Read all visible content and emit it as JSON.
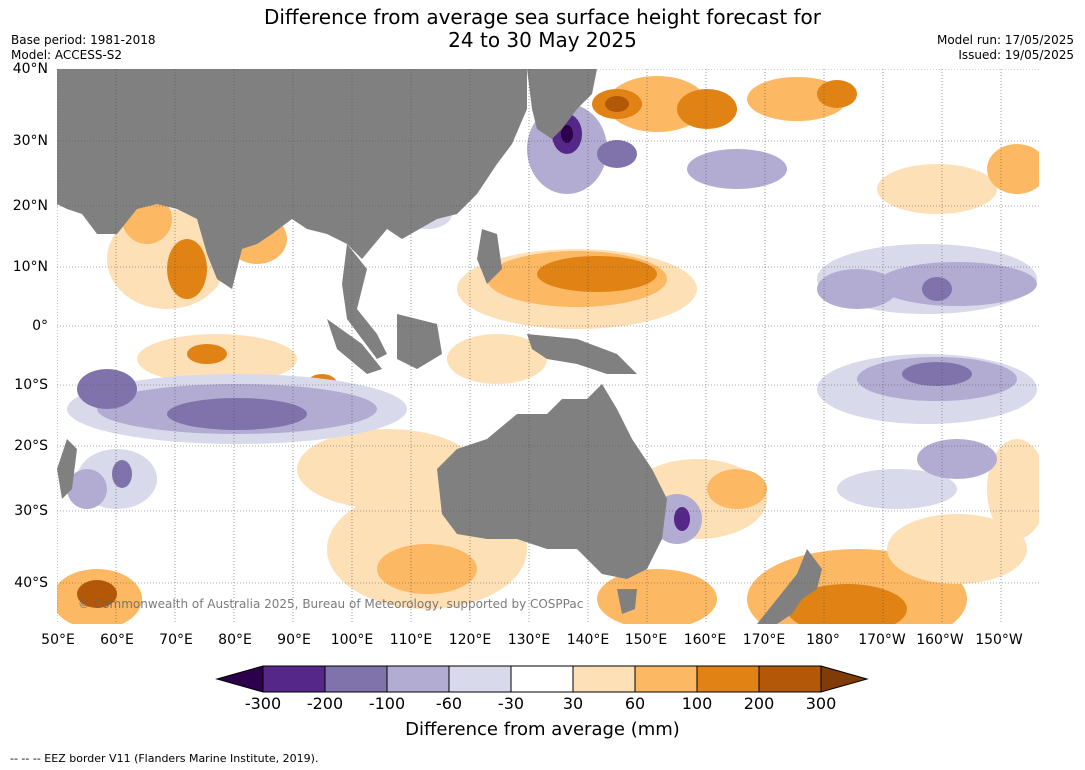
{
  "title_line1": "Difference from average sea surface height forecast for",
  "title_line2": "24 to 30 May 2025",
  "base_period": "Base period: 1981-2018",
  "model": "Model: ACCESS-S2",
  "model_run": "Model run: 17/05/2025",
  "issued": "Issued: 19/05/2025",
  "copyright": "© Commonwealth of Australia 2025, Bureau of Meteorology, supported by COSPPac",
  "x_ticks": [
    "50°E",
    "60°E",
    "70°E",
    "80°E",
    "90°E",
    "100°E",
    "110°E",
    "120°E",
    "130°E",
    "140°E",
    "150°E",
    "160°E",
    "170°E",
    "180°",
    "170°W",
    "160°W",
    "150°W"
  ],
  "y_ticks": [
    "40°N",
    "30°N",
    "20°N",
    "10°N",
    "0°",
    "10°S",
    "20°S",
    "30°S",
    "40°S"
  ],
  "colorbar": {
    "title": "Difference from average (mm)",
    "labels": [
      "-300",
      "-200",
      "-100",
      "-60",
      "-30",
      "30",
      "60",
      "100",
      "200",
      "300"
    ],
    "colors": [
      "#2d004b",
      "#542788",
      "#8073ac",
      "#b2abd2",
      "#d8daeb",
      "#ffffff",
      "#fee0b6",
      "#fdb863",
      "#e08214",
      "#b35806",
      "#7f3b08"
    ]
  },
  "footer": "--  --  -- EEZ border V11 (Flanders Marine Institute, 2019).",
  "colors": {
    "land": "#808080",
    "grid": "#555555"
  }
}
